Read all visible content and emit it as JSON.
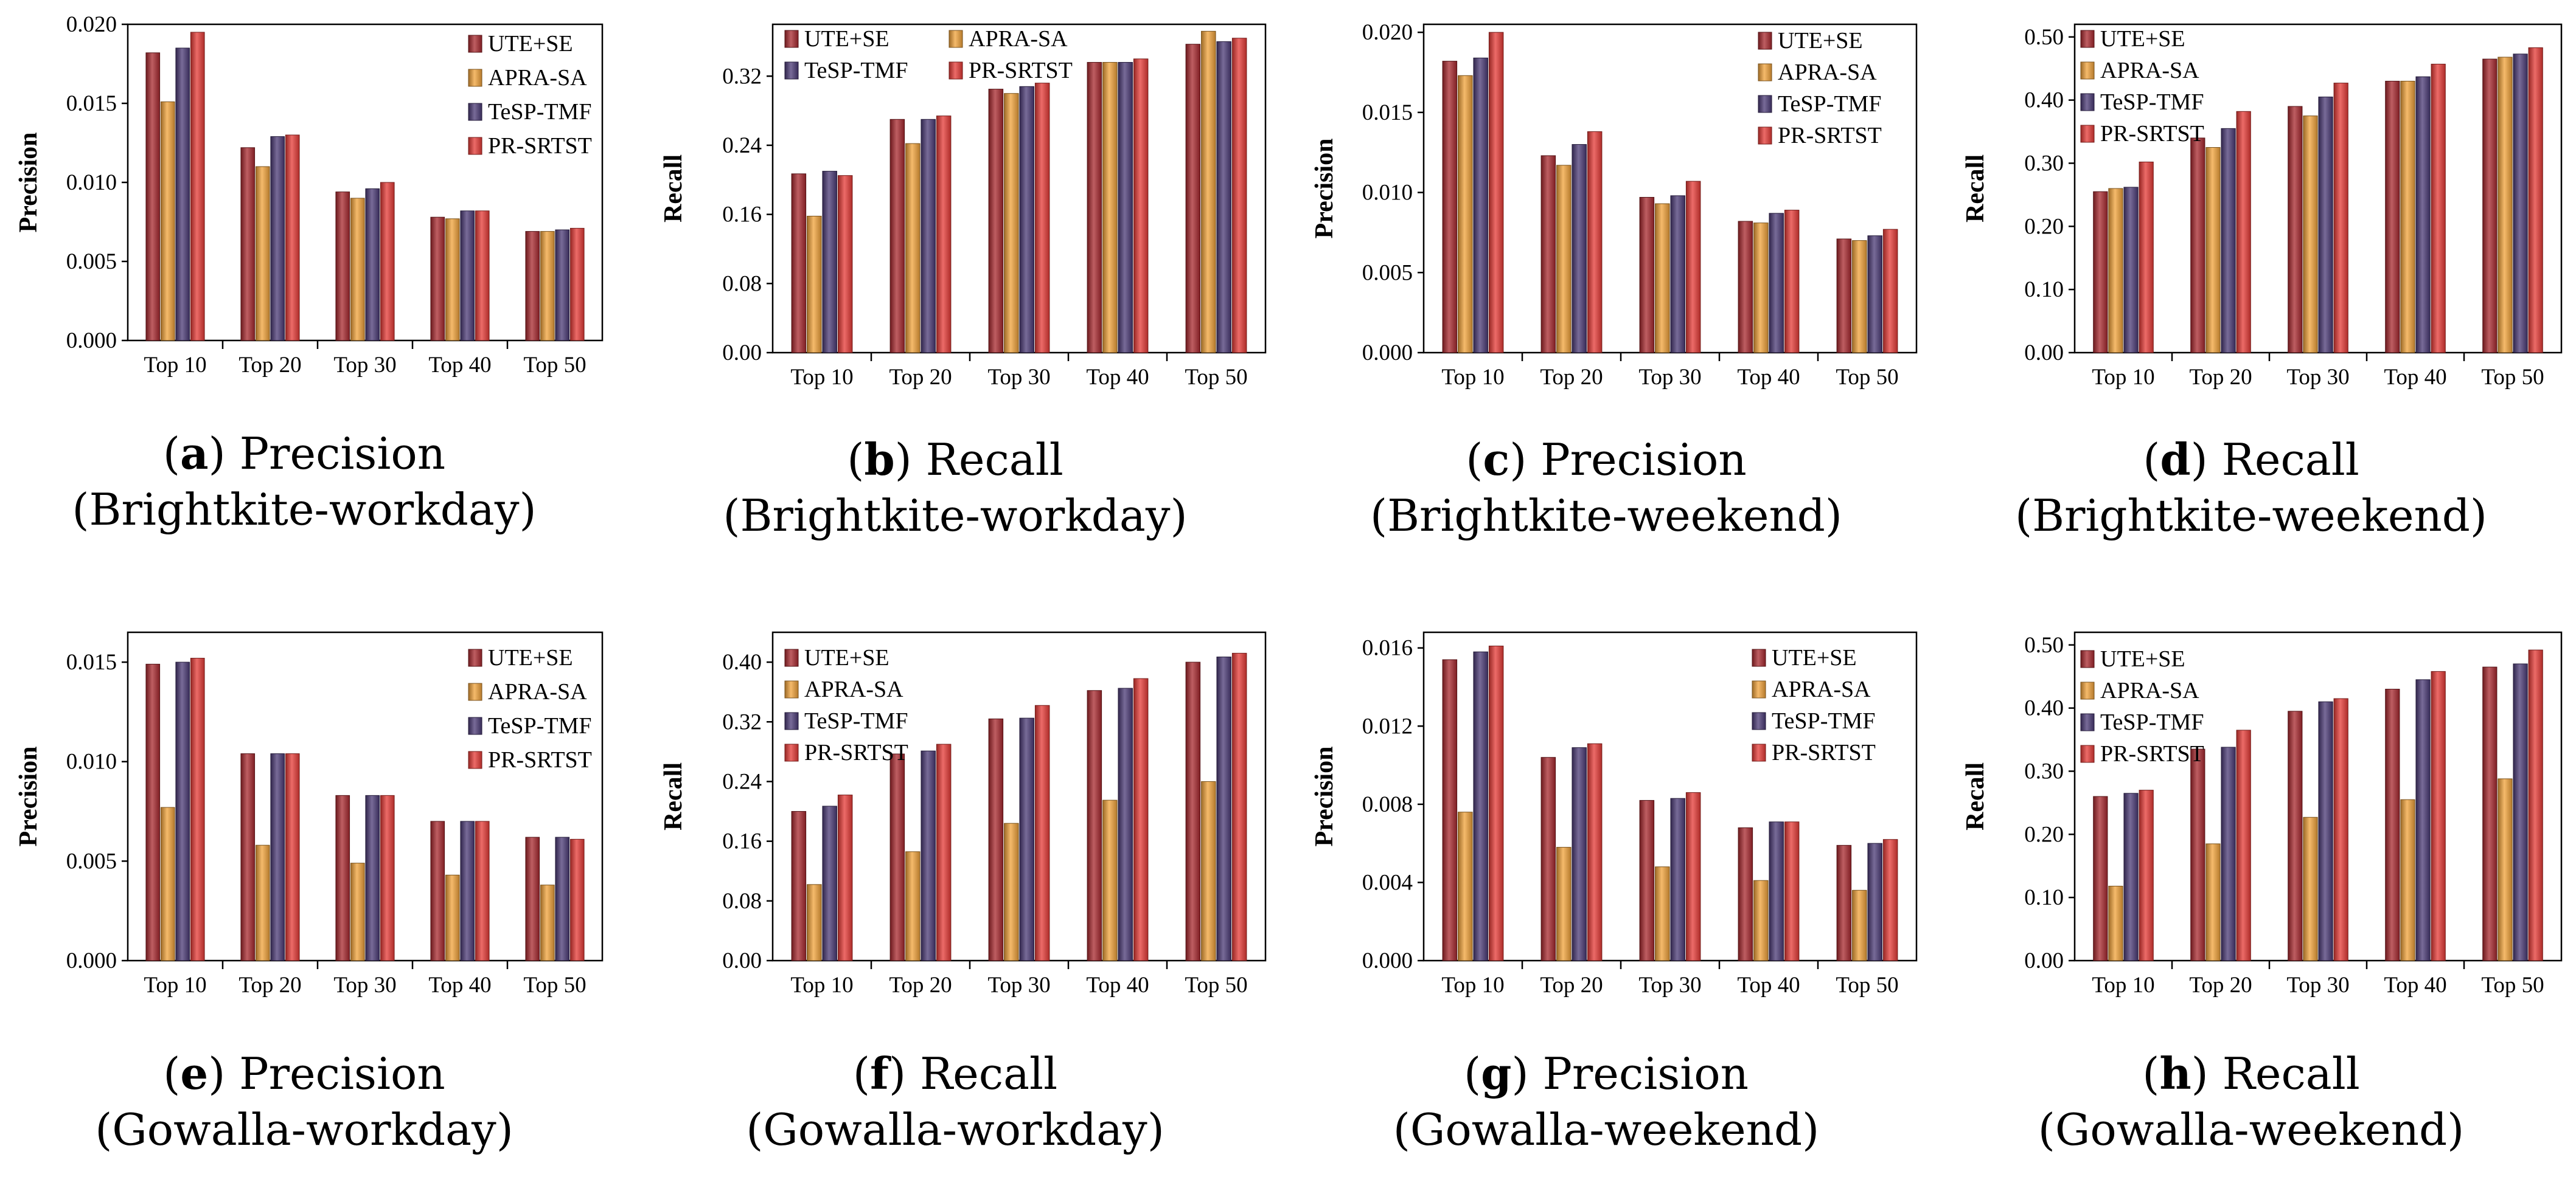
{
  "colors": {
    "UTE+SE": "#a8282e",
    "APRA-SA": "#f1a33a",
    "TeSP-TMF": "#4b3a76",
    "PR-SRTST": "#e63a36"
  },
  "charts": [
    {
      "caption": {
        "letter": "a",
        "title": "Precision",
        "subtitle": "(Brightkite-workday)"
      },
      "chart_data": {
        "type": "bar",
        "categories": [
          "Top 10",
          "Top 20",
          "Top 30",
          "Top 40",
          "Top 50"
        ],
        "ylabel": "Precision",
        "ylim": [
          0,
          0.02
        ],
        "yticks": [
          "0.000",
          "0.005",
          "0.010",
          "0.015",
          "0.020"
        ],
        "legend": [
          "UTE+SE",
          "APRA-SA",
          "TeSP-TMF",
          "PR-SRTST"
        ],
        "series": [
          {
            "name": "UTE+SE",
            "values": [
              0.0182,
              0.0122,
              0.0094,
              0.0078,
              0.0069
            ]
          },
          {
            "name": "APRA-SA",
            "values": [
              0.0151,
              0.011,
              0.009,
              0.0077,
              0.0069
            ]
          },
          {
            "name": "TeSP-TMF",
            "values": [
              0.0185,
              0.0129,
              0.0096,
              0.0082,
              0.007
            ]
          },
          {
            "name": "PR-SRTST",
            "values": [
              0.0195,
              0.013,
              0.01,
              0.0082,
              0.0071
            ]
          }
        ]
      }
    },
    {
      "caption": {
        "letter": "b",
        "title": "Recall",
        "subtitle": "(Brightkite-workday)"
      },
      "chart_data": {
        "type": "bar",
        "categories": [
          "Top 10",
          "Top 20",
          "Top 30",
          "Top 40",
          "Top 50"
        ],
        "ylabel": "Recall",
        "ylim": [
          0,
          0.38
        ],
        "yticks": [
          "0.00",
          "0.08",
          "0.16",
          "0.24",
          "0.32"
        ],
        "legend": [
          "UTE+SE",
          "APRA-SA",
          "TeSP-TMF",
          "PR-SRTST"
        ],
        "series": [
          {
            "name": "UTE+SE",
            "values": [
              0.207,
              0.27,
              0.305,
              0.336,
              0.357
            ]
          },
          {
            "name": "APRA-SA",
            "values": [
              0.158,
              0.242,
              0.3,
              0.336,
              0.372
            ]
          },
          {
            "name": "TeSP-TMF",
            "values": [
              0.21,
              0.27,
              0.308,
              0.336,
              0.36
            ]
          },
          {
            "name": "PR-SRTST",
            "values": [
              0.205,
              0.274,
              0.312,
              0.34,
              0.364
            ]
          }
        ]
      }
    },
    {
      "caption": {
        "letter": "c",
        "title": "Precision",
        "subtitle": "(Brightkite-weekend)"
      },
      "chart_data": {
        "type": "bar",
        "categories": [
          "Top 10",
          "Top 20",
          "Top 30",
          "Top 40",
          "Top 50"
        ],
        "ylabel": "Precision",
        "ylim": [
          0,
          0.0205
        ],
        "yticks": [
          "0.000",
          "0.005",
          "0.010",
          "0.015",
          "0.020"
        ],
        "legend": [
          "UTE+SE",
          "APRA-SA",
          "TeSP-TMF",
          "PR-SRTST"
        ],
        "series": [
          {
            "name": "UTE+SE",
            "values": [
              0.0182,
              0.0123,
              0.0097,
              0.0082,
              0.0071
            ]
          },
          {
            "name": "APRA-SA",
            "values": [
              0.0173,
              0.0117,
              0.0093,
              0.0081,
              0.007
            ]
          },
          {
            "name": "TeSP-TMF",
            "values": [
              0.0184,
              0.013,
              0.0098,
              0.0087,
              0.0073
            ]
          },
          {
            "name": "PR-SRTST",
            "values": [
              0.02,
              0.0138,
              0.0107,
              0.0089,
              0.0077
            ]
          }
        ]
      }
    },
    {
      "caption": {
        "letter": "d",
        "title": "Recall",
        "subtitle": "(Brightkite-weekend)"
      },
      "chart_data": {
        "type": "bar",
        "categories": [
          "Top 10",
          "Top 20",
          "Top 30",
          "Top 40",
          "Top 50"
        ],
        "ylabel": "Recall",
        "ylim": [
          0,
          0.52
        ],
        "yticks": [
          "0.00",
          "0.10",
          "0.20",
          "0.30",
          "0.40",
          "0.50"
        ],
        "legend": [
          "UTE+SE",
          "APRA-SA",
          "TeSP-TMF",
          "PR-SRTST"
        ],
        "series": [
          {
            "name": "UTE+SE",
            "values": [
              0.255,
              0.34,
              0.39,
              0.43,
              0.465
            ]
          },
          {
            "name": "APRA-SA",
            "values": [
              0.26,
              0.325,
              0.375,
              0.43,
              0.468
            ]
          },
          {
            "name": "TeSP-TMF",
            "values": [
              0.262,
              0.355,
              0.405,
              0.437,
              0.473
            ]
          },
          {
            "name": "PR-SRTST",
            "values": [
              0.302,
              0.382,
              0.427,
              0.457,
              0.483
            ]
          }
        ]
      }
    },
    {
      "caption": {
        "letter": "e",
        "title": "Precision",
        "subtitle": "(Gowalla-workday)"
      },
      "chart_data": {
        "type": "bar",
        "categories": [
          "Top 10",
          "Top 20",
          "Top 30",
          "Top 40",
          "Top 50"
        ],
        "ylabel": "Precision",
        "ylim": [
          0,
          0.0165
        ],
        "yticks": [
          "0.000",
          "0.005",
          "0.010",
          "0.015"
        ],
        "legend": [
          "UTE+SE",
          "APRA-SA",
          "TeSP-TMF",
          "PR-SRTST"
        ],
        "series": [
          {
            "name": "UTE+SE",
            "values": [
              0.0149,
              0.0104,
              0.0083,
              0.007,
              0.0062
            ]
          },
          {
            "name": "APRA-SA",
            "values": [
              0.0077,
              0.0058,
              0.0049,
              0.0043,
              0.0038
            ]
          },
          {
            "name": "TeSP-TMF",
            "values": [
              0.015,
              0.0104,
              0.0083,
              0.007,
              0.0062
            ]
          },
          {
            "name": "PR-SRTST",
            "values": [
              0.0152,
              0.0104,
              0.0083,
              0.007,
              0.0061
            ]
          }
        ]
      }
    },
    {
      "caption": {
        "letter": "f",
        "title": "Recall",
        "subtitle": "(Gowalla-workday)"
      },
      "chart_data": {
        "type": "bar",
        "categories": [
          "Top 10",
          "Top 20",
          "Top 30",
          "Top 40",
          "Top 50"
        ],
        "ylabel": "Recall",
        "ylim": [
          0,
          0.44
        ],
        "yticks": [
          "0.00",
          "0.08",
          "0.16",
          "0.24",
          "0.32",
          "0.40"
        ],
        "legend": [
          "UTE+SE",
          "APRA-SA",
          "TeSP-TMF",
          "PR-SRTST"
        ],
        "series": [
          {
            "name": "UTE+SE",
            "values": [
              0.2,
              0.277,
              0.324,
              0.362,
              0.4
            ]
          },
          {
            "name": "APRA-SA",
            "values": [
              0.102,
              0.146,
              0.184,
              0.215,
              0.24
            ]
          },
          {
            "name": "TeSP-TMF",
            "values": [
              0.207,
              0.281,
              0.325,
              0.365,
              0.407
            ]
          },
          {
            "name": "PR-SRTST",
            "values": [
              0.222,
              0.29,
              0.342,
              0.378,
              0.412
            ]
          }
        ]
      }
    },
    {
      "caption": {
        "letter": "g",
        "title": "Precision",
        "subtitle": "(Gowalla-weekend)"
      },
      "chart_data": {
        "type": "bar",
        "categories": [
          "Top 10",
          "Top 20",
          "Top 30",
          "Top 40",
          "Top 50"
        ],
        "ylabel": "Precision",
        "ylim": [
          0,
          0.0168
        ],
        "yticks": [
          "0.000",
          "0.004",
          "0.008",
          "0.012",
          "0.016"
        ],
        "legend": [
          "UTE+SE",
          "APRA-SA",
          "TeSP-TMF",
          "PR-SRTST"
        ],
        "series": [
          {
            "name": "UTE+SE",
            "values": [
              0.0154,
              0.0104,
              0.0082,
              0.0068,
              0.0059
            ]
          },
          {
            "name": "APRA-SA",
            "values": [
              0.0076,
              0.0058,
              0.0048,
              0.0041,
              0.0036
            ]
          },
          {
            "name": "TeSP-TMF",
            "values": [
              0.0158,
              0.0109,
              0.0083,
              0.0071,
              0.006
            ]
          },
          {
            "name": "PR-SRTST",
            "values": [
              0.0161,
              0.0111,
              0.0086,
              0.0071,
              0.0062
            ]
          }
        ]
      }
    },
    {
      "caption": {
        "letter": "h",
        "title": "Recall",
        "subtitle": "(Gowalla-weekend)"
      },
      "chart_data": {
        "type": "bar",
        "categories": [
          "Top 10",
          "Top 20",
          "Top 30",
          "Top 40",
          "Top 50"
        ],
        "ylabel": "Recall",
        "ylim": [
          0,
          0.52
        ],
        "yticks": [
          "0.00",
          "0.10",
          "0.20",
          "0.30",
          "0.40",
          "0.50"
        ],
        "legend": [
          "UTE+SE",
          "APRA-SA",
          "TeSP-TMF",
          "PR-SRTST"
        ],
        "series": [
          {
            "name": "UTE+SE",
            "values": [
              0.26,
              0.335,
              0.395,
              0.43,
              0.465
            ]
          },
          {
            "name": "APRA-SA",
            "values": [
              0.118,
              0.185,
              0.227,
              0.255,
              0.288
            ]
          },
          {
            "name": "TeSP-TMF",
            "values": [
              0.265,
              0.338,
              0.41,
              0.445,
              0.47
            ]
          },
          {
            "name": "PR-SRTST",
            "values": [
              0.27,
              0.365,
              0.415,
              0.458,
              0.492
            ]
          }
        ]
      }
    }
  ]
}
